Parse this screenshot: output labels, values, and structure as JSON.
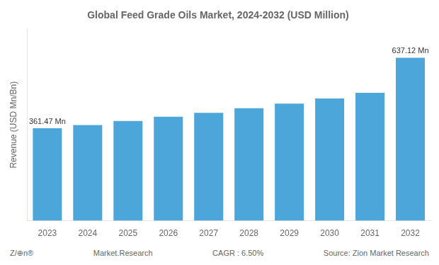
{
  "chart_data": {
    "type": "bar",
    "title": "Global Feed Grade Oils Market, 2024-2032 (USD Million)",
    "ylabel": "Revenue (USD Mn/Bn)",
    "categories": [
      "2023",
      "2024",
      "2025",
      "2026",
      "2027",
      "2028",
      "2029",
      "2030",
      "2031",
      "2032"
    ],
    "values": [
      361.47,
      374.0,
      390.0,
      407.0,
      422.0,
      440.0,
      458.0,
      478.0,
      500.0,
      637.12
    ],
    "color": "#4da6d9",
    "ylim": [
      0,
      750
    ],
    "grid": false,
    "tick_labels": "x",
    "annotations": [
      {
        "category": "2023",
        "text": "361.47 Mn"
      },
      {
        "category": "2032",
        "text": "637.12 Mn"
      },
      {
        "text": "Z/⊕n®"
      },
      {
        "text": "Market.Research"
      },
      {
        "text": "CAGR : 6.50%"
      },
      {
        "text": "Source: Zion Market Research"
      }
    ]
  }
}
